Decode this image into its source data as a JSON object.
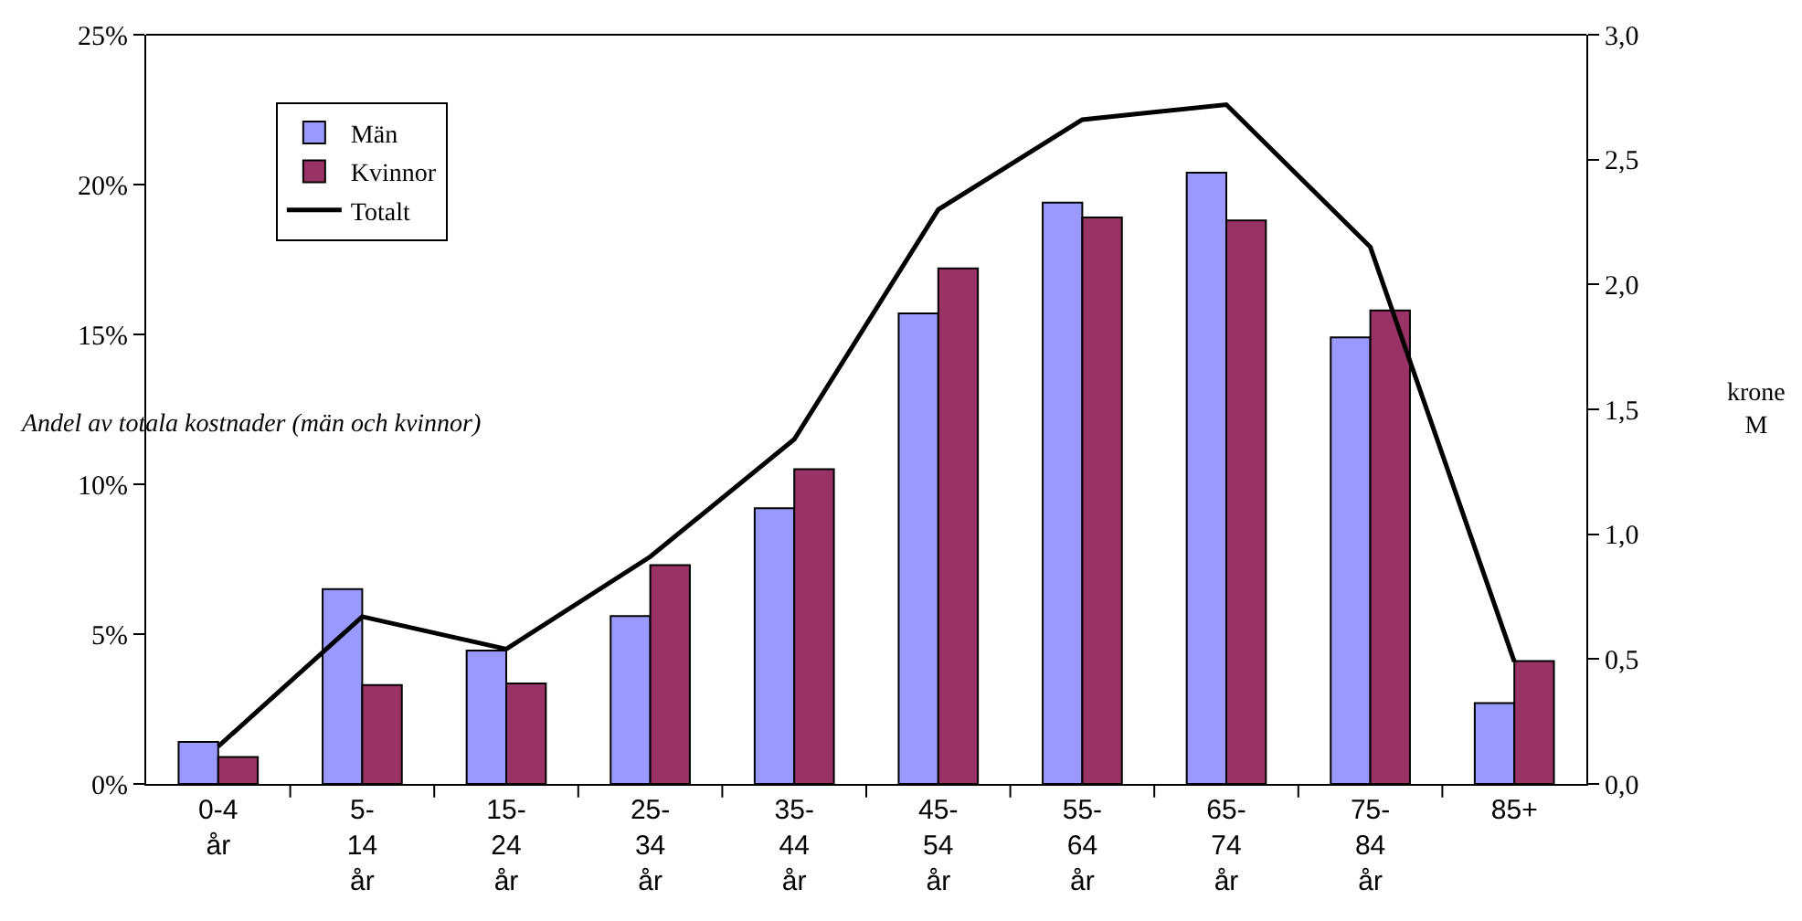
{
  "chart_data": {
    "type": "bar",
    "categories": [
      "0-4\når",
      "5-\n14\når",
      "15-\n24\når",
      "25-\n34\når",
      "35-\n44\når",
      "45-\n54\når",
      "55-\n64\når",
      "65-\n74\når",
      "75-\n84\når",
      "85+"
    ],
    "series": [
      {
        "name": "Män",
        "color": "#9999ff",
        "values": [
          1.4,
          6.5,
          4.45,
          5.6,
          9.2,
          15.7,
          19.4,
          20.4,
          14.9,
          2.7
        ]
      },
      {
        "name": "Kvinnor",
        "color": "#993366",
        "values": [
          0.9,
          3.3,
          3.35,
          7.3,
          10.5,
          17.2,
          18.9,
          18.8,
          15.8,
          4.1
        ]
      },
      {
        "name": "Totalt",
        "type": "line",
        "axis": "y2",
        "color": "#000000",
        "values": [
          0.15,
          0.67,
          0.54,
          0.91,
          1.38,
          2.3,
          2.66,
          2.72,
          2.15,
          0.49
        ]
      }
    ],
    "ylabel": "Andel av totala kostnader (män och kvinnor)",
    "y2label": "krone\nM",
    "ylim": [
      0,
      25
    ],
    "yticks": [
      {
        "value": 0,
        "label": "0%"
      },
      {
        "value": 5,
        "label": "5%"
      },
      {
        "value": 10,
        "label": "10%"
      },
      {
        "value": 15,
        "label": "15%"
      },
      {
        "value": 20,
        "label": "20%"
      },
      {
        "value": 25,
        "label": "25%"
      }
    ],
    "y2lim": [
      0,
      3
    ],
    "y2ticks": [
      {
        "value": 0,
        "label": "0,0"
      },
      {
        "value": 0.5,
        "label": "0,5"
      },
      {
        "value": 1,
        "label": "1,0"
      },
      {
        "value": 1.5,
        "label": "1,5"
      },
      {
        "value": 2,
        "label": "2,0"
      },
      {
        "value": 2.5,
        "label": "2,5"
      },
      {
        "value": 3,
        "label": "3,0"
      }
    ],
    "legend": "top left",
    "marker": "none",
    "line_style": "solid"
  }
}
